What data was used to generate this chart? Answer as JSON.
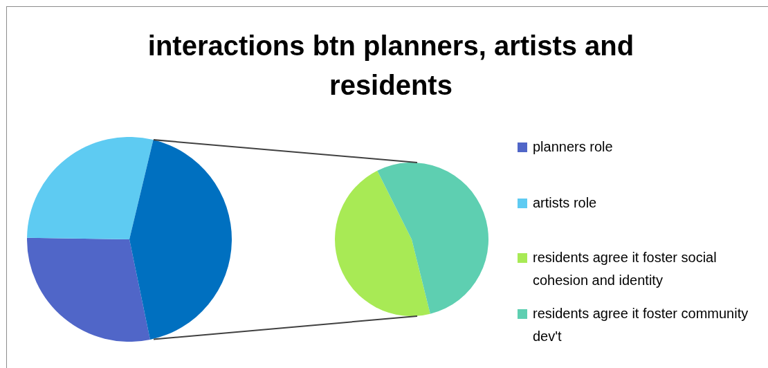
{
  "chart_data": [
    {
      "type": "pie",
      "title": "interactions btn planners, artists and residents",
      "categories": [
        "planners role",
        "artists role",
        null
      ],
      "values": [
        28.5,
        28.5,
        43
      ],
      "colors": [
        "#5066c8",
        "#5ecbf2",
        "#0070c0"
      ],
      "legend": "right"
    },
    {
      "type": "pie",
      "categories": [
        "residents agree it foster social cohesion and identity",
        "residents agree it foster community dev't"
      ],
      "values": [
        46.5,
        53.5
      ],
      "colors": [
        "#a8ea55",
        "#5ecfb1"
      ],
      "legend": "right"
    }
  ]
}
